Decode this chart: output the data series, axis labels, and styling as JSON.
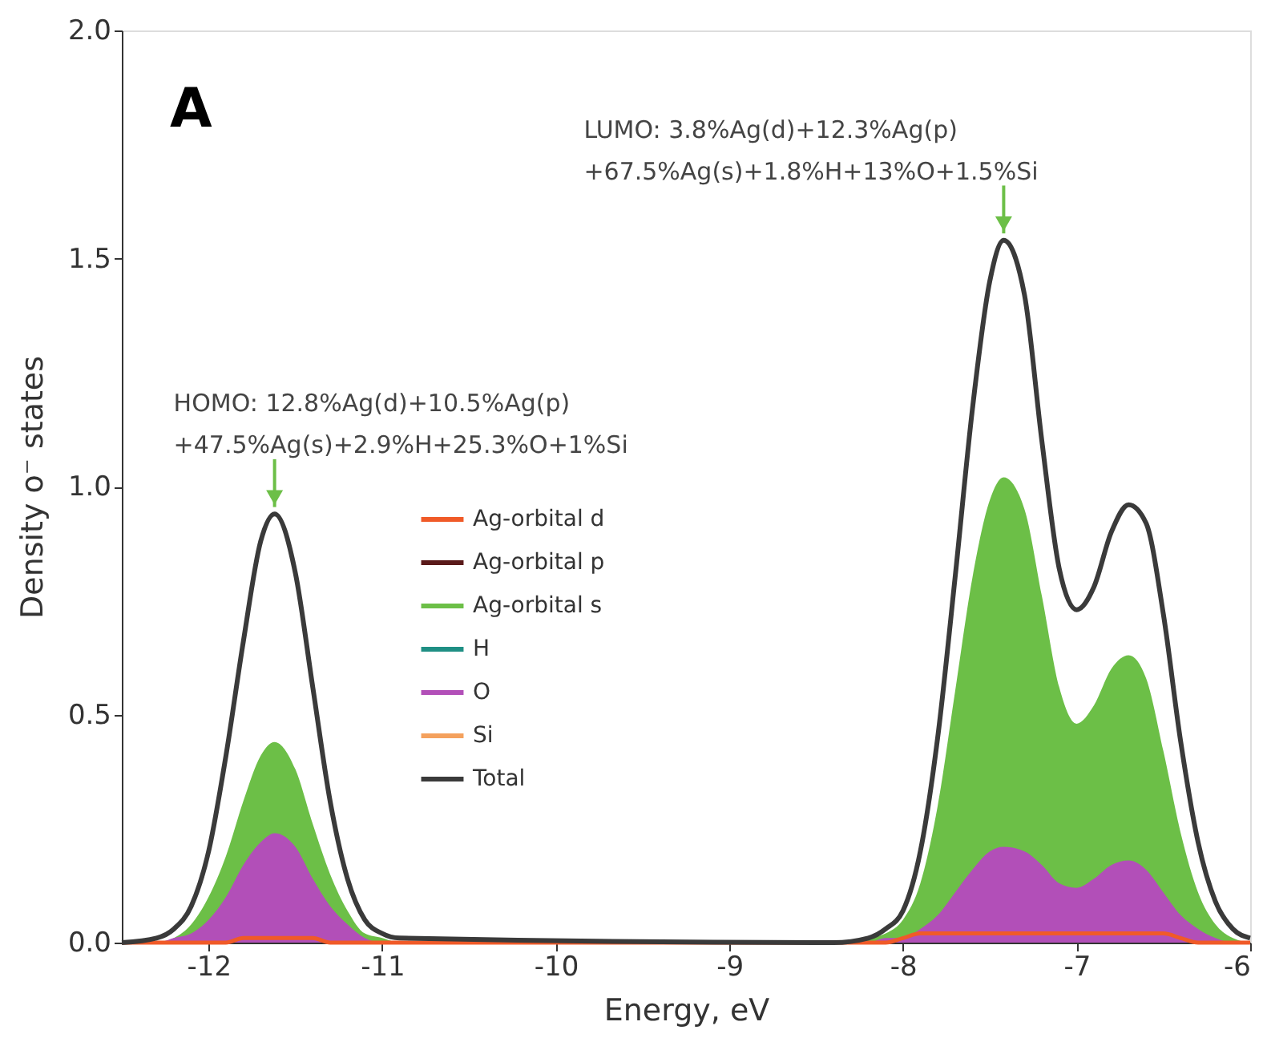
{
  "chart_data": {
    "type": "line",
    "xlabel": "Energy, eV",
    "ylabel": "Density o⁻ states",
    "x": [
      -12.5,
      -12.3,
      -12.2,
      -12.1,
      -12.0,
      -11.9,
      -11.8,
      -11.7,
      -11.62,
      -11.5,
      -11.4,
      -11.3,
      -11.2,
      -11.1,
      -11.0,
      -10.9,
      -8.4,
      -8.2,
      -8.1,
      -8.0,
      -7.9,
      -7.8,
      -7.7,
      -7.6,
      -7.5,
      -7.42,
      -7.3,
      -7.2,
      -7.1,
      -7.0,
      -6.9,
      -6.8,
      -6.7,
      -6.6,
      -6.5,
      -6.4,
      -6.3,
      -6.2,
      -6.1,
      -6.0
    ],
    "series": [
      {
        "name": "Ag-orbital d",
        "color": "#f05a28",
        "type": "line",
        "values": [
          0,
          0,
          0,
          0,
          0,
          0,
          0.01,
          0.01,
          0.01,
          0.01,
          0.01,
          0,
          0,
          0,
          0,
          0,
          0,
          0,
          0,
          0.01,
          0.02,
          0.02,
          0.02,
          0.02,
          0.02,
          0.02,
          0.02,
          0.02,
          0.02,
          0.02,
          0.02,
          0.02,
          0.02,
          0.02,
          0.02,
          0.01,
          0,
          0,
          0,
          0
        ]
      },
      {
        "name": "Ag-orbital p",
        "color": "#5a1a1a",
        "type": "line",
        "values": [
          null,
          null,
          null,
          null,
          null,
          null,
          null,
          null,
          null,
          null,
          null,
          null,
          null,
          null,
          null,
          null,
          null,
          null,
          null,
          null,
          null,
          null,
          null,
          null,
          null,
          null,
          null,
          null,
          null,
          null,
          null,
          null,
          null,
          null,
          null,
          null,
          null,
          null,
          null,
          null
        ]
      },
      {
        "name": "Ag-orbital s",
        "color": "#6cbf47",
        "type": "area",
        "values": [
          0,
          0,
          0.01,
          0.04,
          0.1,
          0.19,
          0.31,
          0.41,
          0.44,
          0.38,
          0.26,
          0.15,
          0.07,
          0.02,
          0.01,
          0,
          0,
          0.01,
          0.02,
          0.05,
          0.13,
          0.3,
          0.55,
          0.8,
          0.97,
          1.02,
          0.95,
          0.76,
          0.56,
          0.48,
          0.52,
          0.6,
          0.63,
          0.58,
          0.42,
          0.24,
          0.11,
          0.04,
          0.01,
          0
        ]
      },
      {
        "name": "H",
        "color": "#1f8f84",
        "type": "line",
        "values": [
          null,
          null,
          null,
          null,
          null,
          null,
          null,
          null,
          null,
          null,
          null,
          null,
          null,
          null,
          null,
          null,
          null,
          null,
          null,
          null,
          null,
          null,
          null,
          null,
          null,
          null,
          null,
          null,
          null,
          null,
          null,
          null,
          null,
          null,
          null,
          null,
          null,
          null,
          null,
          null
        ]
      },
      {
        "name": "O",
        "color": "#b24fb8",
        "type": "area",
        "values": [
          0,
          0,
          0.01,
          0.02,
          0.05,
          0.1,
          0.17,
          0.22,
          0.24,
          0.21,
          0.14,
          0.08,
          0.04,
          0.01,
          0,
          0,
          0,
          0,
          0.01,
          0.01,
          0.03,
          0.06,
          0.11,
          0.16,
          0.2,
          0.21,
          0.2,
          0.17,
          0.13,
          0.12,
          0.14,
          0.17,
          0.18,
          0.16,
          0.11,
          0.06,
          0.03,
          0.01,
          0,
          0
        ]
      },
      {
        "name": "Si",
        "color": "#f4a15d",
        "type": "line",
        "values": [
          null,
          null,
          null,
          null,
          null,
          null,
          null,
          null,
          null,
          null,
          null,
          null,
          null,
          null,
          null,
          null,
          null,
          null,
          null,
          null,
          null,
          null,
          null,
          null,
          null,
          null,
          null,
          null,
          null,
          null,
          null,
          null,
          null,
          null,
          null,
          null,
          null,
          null,
          null,
          null
        ]
      },
      {
        "name": "Total",
        "color": "#3a3a3a",
        "type": "line",
        "values": [
          0,
          0.01,
          0.03,
          0.08,
          0.2,
          0.41,
          0.66,
          0.88,
          0.94,
          0.81,
          0.56,
          0.31,
          0.14,
          0.05,
          0.02,
          0.01,
          0,
          0.01,
          0.03,
          0.07,
          0.2,
          0.45,
          0.8,
          1.17,
          1.45,
          1.54,
          1.42,
          1.1,
          0.82,
          0.73,
          0.78,
          0.9,
          0.96,
          0.92,
          0.72,
          0.44,
          0.22,
          0.09,
          0.03,
          0.01
        ]
      }
    ],
    "xlim": [
      -12.5,
      -6
    ],
    "xticks": [
      -12,
      -11,
      -10,
      -9,
      -8,
      -7,
      -6
    ],
    "ylim": [
      0,
      2
    ],
    "yticks": [
      {
        "value": 0,
        "label": "0.0"
      },
      {
        "value": 0.5,
        "label": "0.5"
      },
      {
        "value": 1,
        "label": "1.0"
      },
      {
        "value": 1.5,
        "label": "1.5"
      },
      {
        "value": 2,
        "label": "2.0"
      }
    ],
    "grid": false,
    "legend": "left",
    "annotations": [
      "A",
      {
        "text": "HOMO: 12.8%Ag(d)+10.5%Ag(p)\n+47.5%Ag(s)+2.9%H+25.3%O+1%Si",
        "x": -11.62,
        "y": 0.94
      },
      {
        "text": "LUMO: 3.8%Ag(d)+12.3%Ag(p)\n+67.5%Ag(s)+1.8%H+13%O+1.5%Si",
        "x": -7.42,
        "y": 1.54
      }
    ]
  }
}
